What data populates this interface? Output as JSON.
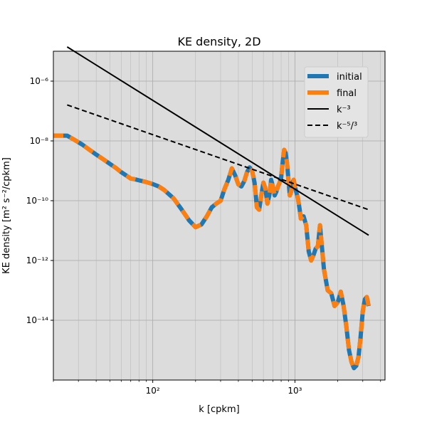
{
  "chart_data": {
    "type": "line",
    "title": "KE density, 2D",
    "xlabel": "k [cpkm]",
    "ylabel": "KE density [m² s⁻²/cpkm]",
    "xscale": "log",
    "yscale": "log",
    "xlim": [
      20,
      4300
    ],
    "ylim": [
      1e-16,
      1e-05
    ],
    "grid": true,
    "x_major_ticks": [
      100,
      1000
    ],
    "x_major_labels": [
      "10²",
      "10³"
    ],
    "y_major_ticks": [
      1e-14,
      1e-12,
      1e-10,
      1e-08,
      1e-06
    ],
    "y_major_labels": [
      "10⁻¹⁴",
      "10⁻¹²",
      "10⁻¹⁰",
      "10⁻⁸",
      "10⁻⁶"
    ],
    "legend_position": "top-right",
    "series": [
      {
        "name": "initial",
        "color": "#1f77b4",
        "style": "solid-thick",
        "x": [
          20,
          25,
          28,
          32,
          36,
          40,
          45,
          50,
          55,
          60,
          65,
          70,
          75,
          80,
          90,
          100,
          110,
          120,
          140,
          160,
          180,
          200,
          220,
          240,
          260,
          280,
          300,
          320,
          340,
          360,
          380,
          400,
          420,
          440,
          460,
          480,
          500,
          520,
          540,
          560,
          580,
          600,
          620,
          640,
          660,
          680,
          700,
          720,
          740,
          760,
          780,
          800,
          820,
          840,
          860,
          880,
          900,
          920,
          940,
          960,
          980,
          1000,
          1020,
          1050,
          1080,
          1100,
          1150,
          1200,
          1250,
          1300,
          1350,
          1400,
          1450,
          1500,
          1600,
          1700,
          1800,
          1900,
          2000,
          2100,
          2200,
          2300,
          2400,
          2500,
          2600,
          2700,
          2800,
          2900,
          3000,
          3100,
          3200,
          3300
        ],
        "y": [
          1.5e-08,
          1.5e-08,
          1.1e-08,
          7.5e-09,
          5e-09,
          3.5e-09,
          2.4e-09,
          1.7e-09,
          1.25e-09,
          9e-10,
          7e-10,
          5.5e-10,
          5.2e-10,
          4.8e-10,
          4.2e-10,
          3.6e-10,
          3e-10,
          2.3e-10,
          1.2e-10,
          5e-11,
          2.2e-11,
          1.3e-11,
          1.6e-11,
          3e-11,
          6e-11,
          8e-11,
          1e-10,
          2.5e-10,
          5e-10,
          1.2e-09,
          7e-10,
          3.5e-10,
          3e-10,
          4.5e-10,
          9e-10,
          1.3e-09,
          1e-09,
          4e-10,
          6e-11,
          5e-11,
          1.5e-10,
          4e-10,
          2.5e-10,
          8e-11,
          1.5e-10,
          5e-10,
          3e-10,
          1.5e-10,
          2e-10,
          3e-10,
          4e-10,
          6e-10,
          2e-09,
          5e-09,
          4e-09,
          1.8e-09,
          5e-10,
          1.5e-10,
          2e-10,
          4e-10,
          5e-10,
          3e-10,
          2e-10,
          1.2e-10,
          5e-11,
          2.5e-11,
          3e-11,
          1.5e-11,
          2e-12,
          1e-12,
          1.5e-12,
          2.5e-12,
          3e-12,
          1.5e-11,
          5e-13,
          1e-13,
          8e-14,
          3e-14,
          4e-14,
          9e-14,
          3e-14,
          6e-15,
          1e-15,
          4e-16,
          2.5e-16,
          3e-16,
          6e-16,
          3e-15,
          2e-14,
          5e-14,
          6e-14,
          3e-14
        ]
      },
      {
        "name": "final",
        "color": "#ff7f0e",
        "style": "dashed-thick",
        "copy_of": "initial"
      },
      {
        "name": "k⁻³",
        "color": "#000000",
        "style": "solid",
        "x": [
          25,
          3300
        ],
        "y": [
          1.4e-05,
          7e-12
        ]
      },
      {
        "name": "k⁻⁵/³",
        "color": "#000000",
        "style": "dashed",
        "x": [
          25,
          3300
        ],
        "y": [
          1.6e-07,
          5e-11
        ]
      }
    ]
  }
}
